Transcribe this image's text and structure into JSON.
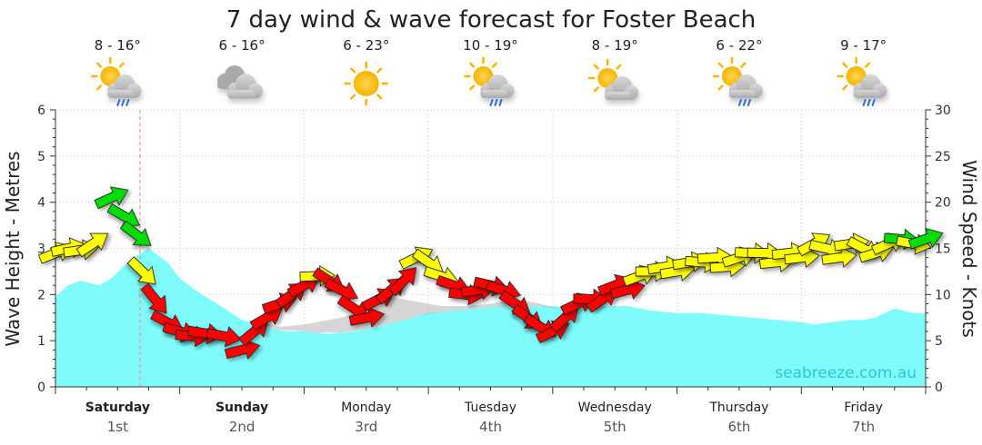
{
  "chart_data": {
    "type": "area",
    "title": "7 day wind & wave forecast for Foster Beach",
    "y_left_label": "Wave Height - Metres",
    "y_right_label": "Wind Speed - Knots",
    "y_left_ticks": [
      "0",
      "1",
      "2",
      "3",
      "4",
      "5",
      "6"
    ],
    "y_right_ticks": [
      "0",
      "5",
      "10",
      "15",
      "20",
      "25",
      "30"
    ],
    "ylim_left": [
      0,
      6
    ],
    "ylim_right": [
      0,
      30
    ],
    "watermark": "seabreeze.com.au",
    "colors": {
      "wave_fill": "#7ffbfb",
      "swell_fill": "#b4b4b4",
      "wind_low": "#ffff00",
      "wind_mid": "#00dd00",
      "wind_high": "#ff0000"
    },
    "days": [
      {
        "name": "Saturday",
        "date": "1st",
        "bold": true,
        "temp": "8 - 16°",
        "icon": "cloud-sun-rain-icon"
      },
      {
        "name": "Sunday",
        "date": "2nd",
        "bold": true,
        "temp": "6 - 16°",
        "icon": "cloud-icon"
      },
      {
        "name": "Monday",
        "date": "3rd",
        "bold": false,
        "temp": "6 - 23°",
        "icon": "sun-icon"
      },
      {
        "name": "Tuesday",
        "date": "4th",
        "bold": false,
        "temp": "10 - 19°",
        "icon": "cloud-sun-rain-icon"
      },
      {
        "name": "Wednesday",
        "date": "5th",
        "bold": false,
        "temp": "8 - 19°",
        "icon": "cloud-sun-icon"
      },
      {
        "name": "Thursday",
        "date": "6th",
        "bold": false,
        "temp": "6 - 22°",
        "icon": "cloud-sun-rain-icon"
      },
      {
        "name": "Friday",
        "date": "7th",
        "bold": false,
        "temp": "9 - 17°",
        "icon": "cloud-sun-rain-icon"
      }
    ],
    "x_days": 7,
    "wave_height": {
      "x": [
        0,
        0.1,
        0.2,
        0.35,
        0.45,
        0.6,
        0.75,
        0.9,
        1.0,
        1.15,
        1.3,
        1.5,
        1.7,
        1.85,
        2.0,
        2.2,
        2.4,
        2.6,
        2.8,
        3.0,
        3.2,
        3.4,
        3.6,
        3.8,
        4.0,
        4.2,
        4.4,
        4.6,
        4.8,
        5.0,
        5.2,
        5.4,
        5.6,
        5.8,
        6.0,
        6.1,
        6.25,
        6.4,
        6.5,
        6.6,
        6.75,
        6.9,
        7.0
      ],
      "y": [
        1.95,
        2.2,
        2.3,
        2.2,
        2.35,
        2.75,
        3.0,
        2.7,
        2.35,
        2.05,
        1.8,
        1.45,
        1.3,
        1.2,
        1.2,
        1.15,
        1.2,
        1.3,
        1.45,
        1.6,
        1.65,
        1.7,
        1.75,
        1.75,
        1.75,
        1.7,
        1.75,
        1.75,
        1.65,
        1.6,
        1.6,
        1.55,
        1.5,
        1.45,
        1.4,
        1.35,
        1.4,
        1.45,
        1.45,
        1.5,
        1.7,
        1.6,
        1.6
      ]
    },
    "swell_height": {
      "x": [
        1.6,
        1.8,
        2.0,
        2.1,
        2.3,
        2.5,
        2.7,
        2.9,
        3.1,
        3.3,
        3.5,
        3.7,
        3.9,
        4.1,
        4.3,
        4.5,
        4.7,
        4.9
      ],
      "y": [
        1.45,
        1.3,
        1.35,
        1.4,
        1.5,
        1.7,
        1.95,
        1.85,
        1.75,
        1.75,
        1.8,
        1.9,
        1.8,
        1.65,
        1.6,
        1.75,
        1.55,
        1.4
      ]
    },
    "wind_speed_knots": {
      "x": [
        0.0,
        0.1,
        0.2,
        0.3,
        0.45,
        0.55,
        0.65,
        0.7,
        0.8,
        0.9,
        1.0,
        1.1,
        1.2,
        1.35,
        1.5,
        1.6,
        1.7,
        1.8,
        1.9,
        2.0,
        2.1,
        2.2,
        2.3,
        2.4,
        2.5,
        2.6,
        2.7,
        2.8,
        2.9,
        3.0,
        3.1,
        3.2,
        3.3,
        3.4,
        3.5,
        3.6,
        3.7,
        3.8,
        3.9,
        4.0,
        4.1,
        4.2,
        4.3,
        4.4,
        4.5,
        4.6,
        4.7,
        4.8,
        4.9,
        5.0,
        5.1,
        5.2,
        5.3,
        5.4,
        5.5,
        5.6,
        5.7,
        5.8,
        5.9,
        6.0,
        6.1,
        6.2,
        6.3,
        6.4,
        6.5,
        6.6,
        6.7,
        6.8,
        6.9,
        7.0
      ],
      "y": [
        14.5,
        15,
        14.8,
        15.5,
        20.5,
        18.5,
        16.5,
        12.5,
        9.5,
        7,
        6,
        5.5,
        5.8,
        5.5,
        4,
        6,
        7.5,
        9,
        10,
        11,
        12,
        11.5,
        10.5,
        8.5,
        7.5,
        9.5,
        10.5,
        11.5,
        14,
        13.5,
        12,
        11,
        10,
        10.5,
        11,
        10.5,
        9,
        7.5,
        6.5,
        6,
        7.5,
        9,
        9.5,
        9.5,
        11,
        10.5,
        12,
        12.5,
        13,
        12.5,
        13.5,
        13.5,
        14,
        13,
        14,
        14.5,
        14.5,
        13.5,
        14.5,
        14,
        15.5,
        15,
        14,
        15.5,
        15,
        14.5,
        15.5,
        16,
        15.5,
        16
      ]
    }
  }
}
